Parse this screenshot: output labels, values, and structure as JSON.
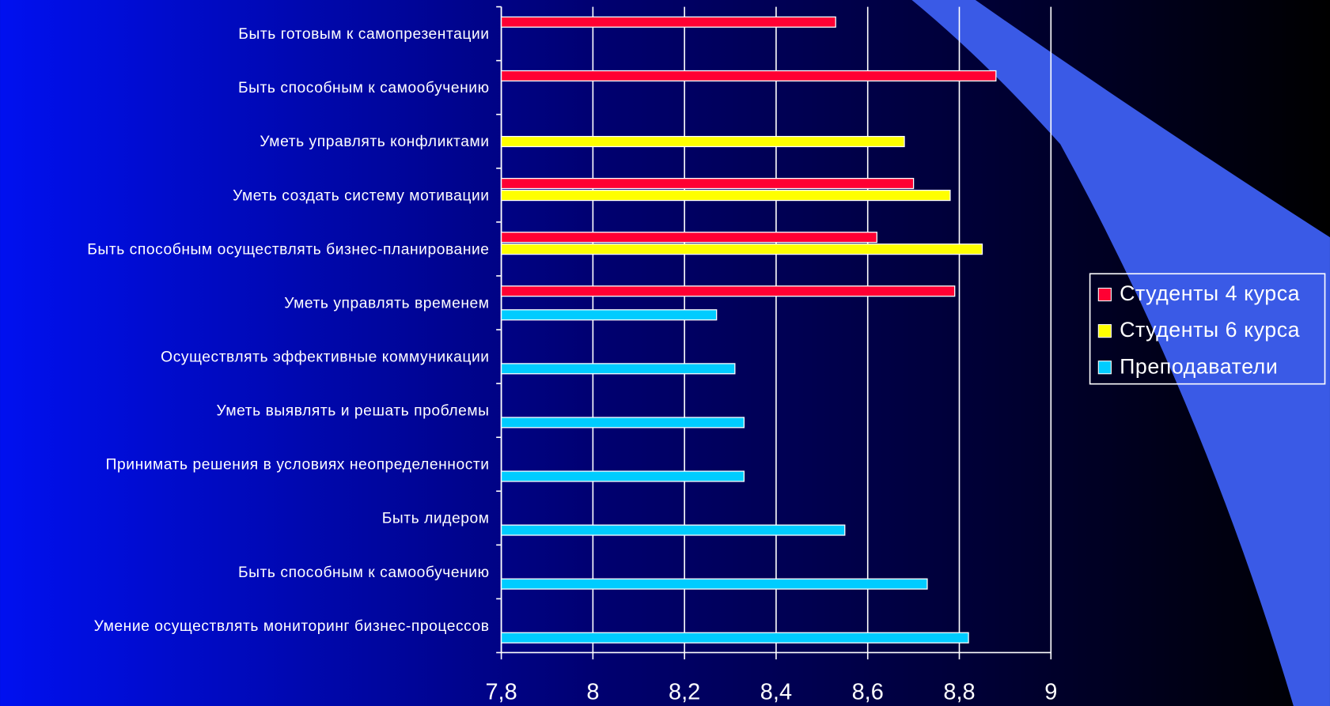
{
  "chart_data": {
    "type": "bar",
    "orientation": "horizontal",
    "categories": [
      "Быть готовым к самопрезентации",
      "Быть способным к самообучению",
      "Уметь управлять конфликтами",
      "Уметь создать систему мотивации",
      "Быть способным осуществлять бизнес-планирование",
      "Уметь управлять временем",
      "Осуществлять эффективные коммуникации",
      "Уметь выявлять и решать проблемы",
      "Принимать решения в условиях неопределенности",
      "Быть лидером",
      "Быть способным к самообучению",
      "Умение осуществлять мониторинг бизнес-процессов"
    ],
    "series": [
      {
        "name": "Студенты 4 курса",
        "color": "#ff0033",
        "values": [
          8.53,
          8.88,
          null,
          8.7,
          8.62,
          8.79,
          null,
          null,
          null,
          null,
          null,
          null
        ]
      },
      {
        "name": "Студенты 6 курса",
        "color": "#ffff00",
        "values": [
          null,
          null,
          8.68,
          8.78,
          8.85,
          null,
          null,
          null,
          null,
          null,
          null,
          null
        ]
      },
      {
        "name": "Преподаватели",
        "color": "#00ccff",
        "values": [
          null,
          null,
          null,
          null,
          null,
          8.27,
          8.31,
          8.33,
          8.33,
          8.55,
          8.73,
          8.82
        ]
      }
    ],
    "xlim": [
      7.8,
      9
    ],
    "xticks": [
      {
        "value": 7.8,
        "label": "7,8"
      },
      8,
      {
        "value": 8.2,
        "label": "8,2"
      },
      {
        "value": 8.4,
        "label": "8,4"
      },
      {
        "value": 8.6,
        "label": "8,6"
      },
      {
        "value": 8.8,
        "label": "8,8"
      },
      9
    ],
    "grid": true,
    "legend": "right"
  }
}
